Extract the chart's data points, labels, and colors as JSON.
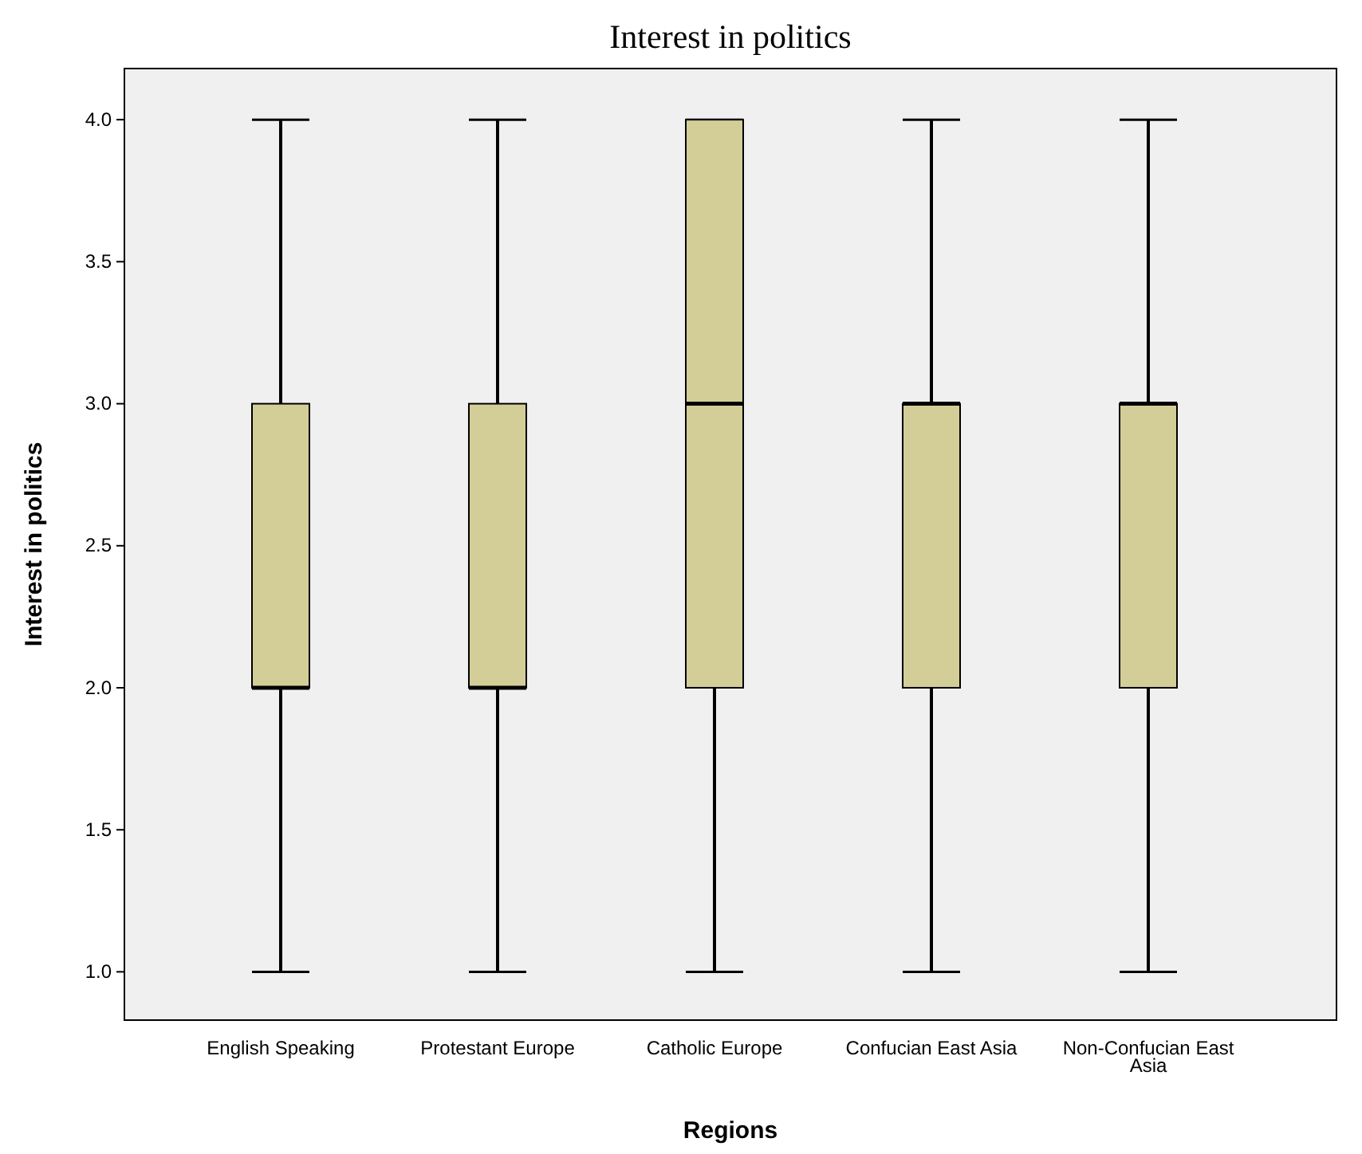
{
  "chart_data": {
    "type": "box",
    "title": "Interest in politics",
    "xlabel": "Regions",
    "ylabel": "Interest in politics",
    "categories": [
      "English Speaking",
      "Protestant Europe",
      "Catholic Europe",
      "Confucian East Asia",
      "Non-Confucian East Asia"
    ],
    "boxes": [
      {
        "low": 1,
        "q1": 2,
        "median": 2,
        "q3": 3,
        "high": 4
      },
      {
        "low": 1,
        "q1": 2,
        "median": 2,
        "q3": 3,
        "high": 4
      },
      {
        "low": 1,
        "q1": 2,
        "median": 3,
        "q3": 4,
        "high": 4
      },
      {
        "low": 1,
        "q1": 2,
        "median": 3,
        "q3": 3,
        "high": 4
      },
      {
        "low": 1,
        "q1": 2,
        "median": 3,
        "q3": 3,
        "high": 4
      }
    ],
    "color": "#d3ce97",
    "ylim": [
      0.83,
      4.18
    ],
    "yticks": [
      {
        "value": 1,
        "label": "1.0"
      },
      {
        "value": 1.5,
        "label": "1.5"
      },
      {
        "value": 2,
        "label": "2.0"
      },
      {
        "value": 2.5,
        "label": "2.5"
      },
      {
        "value": 3,
        "label": "3.0"
      },
      {
        "value": 3.5,
        "label": "3.5"
      },
      {
        "value": 4,
        "label": "4.0"
      }
    ],
    "grid": false
  }
}
